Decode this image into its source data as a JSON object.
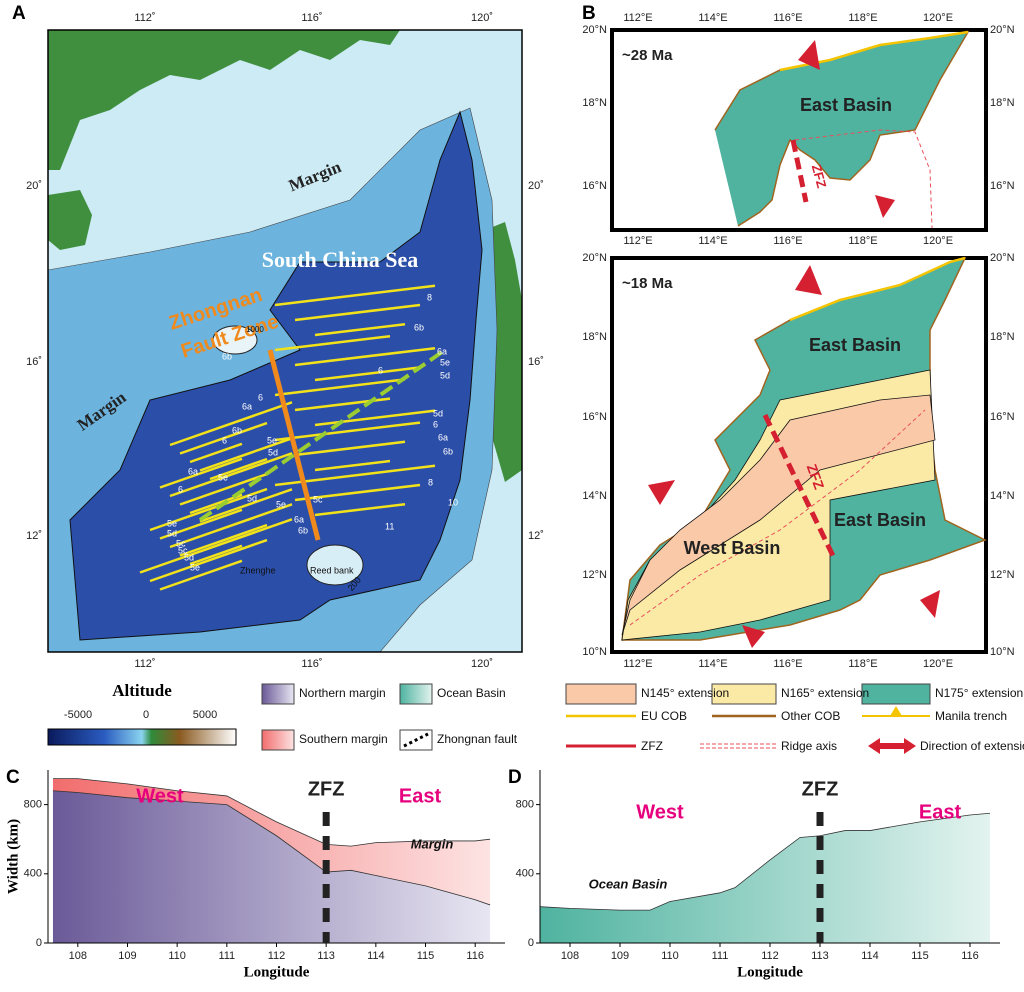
{
  "panel_labels": [
    "A",
    "B",
    "C",
    "D"
  ],
  "panel_a": {
    "lon_ticks": [
      "112˚",
      "116˚",
      "120˚"
    ],
    "lat_ticks": [
      "20˚",
      "16˚",
      "12˚"
    ],
    "sea_name": "South China Sea",
    "fault_zone": [
      "Zhongnan",
      "Fault Zone"
    ],
    "margins": [
      "Margin",
      "Margin"
    ],
    "places": [
      "Zhenghe",
      "Reed bank"
    ],
    "contours": [
      "1000",
      "200"
    ],
    "profiles": [
      "8",
      "6b",
      "6a",
      "5e",
      "5d",
      "6",
      "6b",
      "6",
      "6a",
      "6b",
      "6",
      "5e",
      "5d",
      "5d",
      "6",
      "6a",
      "6b",
      "6a",
      "6",
      "5e",
      "5d",
      "5c",
      "8",
      "10",
      "5e",
      "6a",
      "6b",
      "11",
      "5e",
      "5d",
      "5c",
      "5c",
      "5d",
      "5e"
    ]
  },
  "panel_b": {
    "lon_ticks": [
      "112°E",
      "114°E",
      "116°E",
      "118°E",
      "120°E"
    ],
    "maps": [
      {
        "age": "~28 Ma",
        "lat_ticks": [
          "20°N",
          "18°N",
          "16°N"
        ],
        "basins": [
          "East Basin"
        ],
        "fault": "ZFZ"
      },
      {
        "age": "~18 Ma",
        "lat_ticks": [
          "20°N",
          "18°N",
          "16°N",
          "14°N",
          "12°N",
          "10°N"
        ],
        "basins": [
          "East Basin",
          "East Basin",
          "West Basin"
        ],
        "fault": "ZFZ"
      }
    ]
  },
  "legend": {
    "altitude": {
      "title": "Altitude",
      "ticks": [
        "-5000",
        "0",
        "5000"
      ]
    },
    "fault": "Zhongnan fault",
    "extensions": [
      "N145° extension",
      "N165° extension",
      "N175° extension"
    ],
    "lines": [
      "EU COB",
      "Other COB",
      "Manila trench",
      "ZFZ",
      "Ridge axis",
      "Direction of extension"
    ]
  },
  "chart_data": [
    {
      "type": "area",
      "stacked": true,
      "x": [
        107.5,
        108,
        109,
        110,
        111,
        112,
        113,
        113.5,
        114,
        115,
        116,
        116.3
      ],
      "series": [
        {
          "name": "Northern margin",
          "color": "#6a5a98",
          "values": [
            880,
            870,
            840,
            820,
            800,
            620,
            410,
            420,
            390,
            330,
            250,
            220
          ]
        },
        {
          "name": "Southern margin",
          "color": "#f26d6d",
          "values": [
            70,
            80,
            80,
            60,
            50,
            80,
            160,
            140,
            190,
            260,
            340,
            380
          ]
        }
      ],
      "xlim": [
        107.4,
        116.6
      ],
      "ylim": [
        0,
        1000
      ],
      "xticks": [
        108,
        109,
        110,
        111,
        112,
        113,
        114,
        115,
        116
      ],
      "yticks": [
        0,
        400,
        800
      ],
      "xlabel": "Longitude",
      "ylabel": "Width (km)",
      "annotations": [
        "West",
        "East",
        "Margin"
      ],
      "reference_line": {
        "x": 113,
        "label": "ZFZ"
      }
    },
    {
      "type": "area",
      "stacked": true,
      "x": [
        107.4,
        108,
        109,
        109.6,
        110,
        111,
        111.3,
        112,
        112.6,
        113,
        113.5,
        114,
        115,
        116,
        116.4
      ],
      "series": [
        {
          "name": "Ocean Basin",
          "color": "#4fb3a0",
          "values": [
            210,
            200,
            190,
            190,
            240,
            290,
            320,
            480,
            610,
            620,
            650,
            650,
            700,
            740,
            750
          ]
        }
      ],
      "xlim": [
        107.4,
        116.6
      ],
      "ylim": [
        0,
        1000
      ],
      "xticks": [
        108,
        109,
        110,
        111,
        112,
        113,
        114,
        115,
        116
      ],
      "yticks": [
        0,
        400,
        800
      ],
      "xlabel": "Longitude",
      "annotations": [
        "West",
        "East"
      ],
      "reference_line": {
        "x": 113,
        "label": "ZFZ"
      }
    }
  ]
}
